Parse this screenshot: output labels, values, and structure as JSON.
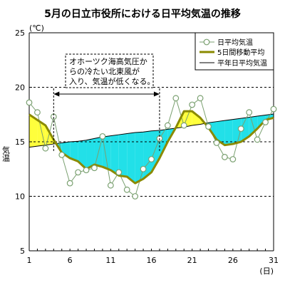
{
  "chart_data": {
    "type": "line",
    "title": "5月の日立市役所における日平均気温の推移",
    "y_unit": "(℃)",
    "ylabel": "気温",
    "x_unit": "(日)",
    "xlim": [
      1,
      31
    ],
    "ylim": [
      5,
      25
    ],
    "x_ticks": [
      1,
      6,
      11,
      16,
      21,
      26,
      31
    ],
    "y_ticks": [
      5,
      10,
      15,
      20,
      25
    ],
    "grid": "dashed horizontal at 10, 15, 20",
    "legend_position": "top-right",
    "legend": [
      "日平均気温",
      "5日間移動平均",
      "平年日平均気温"
    ],
    "annotation": [
      "オホーツク海高気圧か",
      "らの冷たい北東風が",
      "入り、気温が低くなる。"
    ],
    "annotation_span": [
      4,
      17
    ],
    "colors": {
      "daily": "#7aa070",
      "daily_marker_fill": "#ffffff",
      "moving": "#8a8a00",
      "normal": "#000000",
      "fill_below": "#22e0e8",
      "fill_above": "#ffff3c"
    },
    "x": [
      1,
      2,
      3,
      4,
      5,
      6,
      7,
      8,
      9,
      10,
      11,
      12,
      13,
      14,
      15,
      16,
      17,
      18,
      19,
      20,
      21,
      22,
      23,
      24,
      25,
      26,
      27,
      28,
      29,
      30,
      31
    ],
    "series": [
      {
        "name": "日平均気温",
        "values": [
          18.6,
          17.7,
          14.4,
          17.3,
          13.8,
          11.2,
          12.2,
          12.4,
          12.6,
          15.5,
          11.0,
          12.2,
          10.6,
          10.0,
          12.5,
          13.4,
          15.3,
          16.5,
          19.0,
          16.5,
          18.4,
          19.0,
          16.4,
          14.9,
          13.6,
          13.4,
          16.2,
          17.7,
          15.2,
          16.8,
          18.0
        ]
      },
      {
        "name": "5日間移動平均",
        "values": [
          17.5,
          17.0,
          16.5,
          15.2,
          14.0,
          13.5,
          13.2,
          12.5,
          12.9,
          12.7,
          12.4,
          11.9,
          11.8,
          11.2,
          11.6,
          12.2,
          13.5,
          15.0,
          16.3,
          17.8,
          17.8,
          17.2,
          16.3,
          15.2,
          14.7,
          14.8,
          15.0,
          15.5,
          16.2,
          17.0,
          17.2
        ]
      },
      {
        "name": "平年日平均気温",
        "values": [
          14.5,
          14.6,
          14.7,
          14.8,
          14.9,
          15.0,
          15.05,
          15.15,
          15.3,
          15.45,
          15.55,
          15.65,
          15.75,
          15.85,
          15.9,
          16.0,
          16.05,
          16.15,
          16.25,
          16.35,
          16.5,
          16.6,
          16.75,
          16.85,
          16.95,
          17.05,
          17.15,
          17.25,
          17.35,
          17.45,
          17.55
        ]
      }
    ]
  }
}
